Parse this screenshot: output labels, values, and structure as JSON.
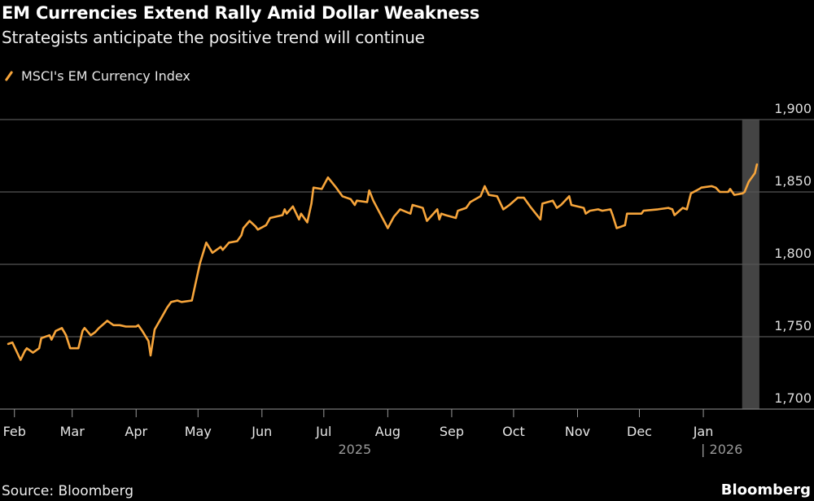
{
  "title": "EM Currencies Extend Rally Amid Dollar Weakness",
  "subtitle": "Strategists anticipate the positive trend will continue",
  "source": "Source: Bloomberg",
  "brand": "Bloomberg",
  "chart_data": {
    "type": "line",
    "xlabel": "",
    "ylabel": "",
    "xlim": [
      "2025-01-25",
      "2026-01-29"
    ],
    "ylim": [
      1700,
      1900
    ],
    "grid": true,
    "legend_position": "top-left",
    "y_ticks": [
      {
        "value": 1700,
        "label": "1,700"
      },
      {
        "value": 1750,
        "label": "1,750"
      },
      {
        "value": 1800,
        "label": "1,800"
      },
      {
        "value": 1850,
        "label": "1,850"
      },
      {
        "value": 1900,
        "label": "1,900"
      }
    ],
    "x_ticks": [
      {
        "date": "2025-02-01",
        "label": "Feb"
      },
      {
        "date": "2025-03-01",
        "label": "Mar"
      },
      {
        "date": "2025-04-01",
        "label": "Apr"
      },
      {
        "date": "2025-05-01",
        "label": "May"
      },
      {
        "date": "2025-06-01",
        "label": "Jun"
      },
      {
        "date": "2025-07-01",
        "label": "Jul"
      },
      {
        "date": "2025-08-01",
        "label": "Aug"
      },
      {
        "date": "2025-09-01",
        "label": "Sep"
      },
      {
        "date": "2025-10-01",
        "label": "Oct"
      },
      {
        "date": "2025-11-01",
        "label": "Nov"
      },
      {
        "date": "2025-12-01",
        "label": "Dec"
      },
      {
        "date": "2026-01-01",
        "label": "Jan"
      }
    ],
    "year_labels": [
      {
        "date": "2025-07-01",
        "label": "2025"
      },
      {
        "date": "2026-01-01",
        "label": "| 2026"
      }
    ],
    "highlight_range": [
      "2026-01-21",
      "2026-01-27"
    ],
    "colors": {
      "line": "#f7a53b",
      "grid": "#555555",
      "highlight": "#444444",
      "background": "#000000"
    },
    "series": [
      {
        "name": "MSCI's EM Currency Index",
        "points": [
          [
            "2025-01-29",
            1745
          ],
          [
            "2025-01-31",
            1746
          ],
          [
            "2025-02-04",
            1734
          ],
          [
            "2025-02-06",
            1740
          ],
          [
            "2025-02-07",
            1742
          ],
          [
            "2025-02-10",
            1739
          ],
          [
            "2025-02-13",
            1742
          ],
          [
            "2025-02-14",
            1749
          ],
          [
            "2025-02-18",
            1751
          ],
          [
            "2025-02-19",
            1748
          ],
          [
            "2025-02-21",
            1754
          ],
          [
            "2025-02-24",
            1756
          ],
          [
            "2025-02-26",
            1751
          ],
          [
            "2025-02-28",
            1742
          ],
          [
            "2025-03-04",
            1742
          ],
          [
            "2025-03-06",
            1754
          ],
          [
            "2025-03-07",
            1756
          ],
          [
            "2025-03-10",
            1751
          ],
          [
            "2025-03-12",
            1753
          ],
          [
            "2025-03-14",
            1756
          ],
          [
            "2025-03-18",
            1761
          ],
          [
            "2025-03-21",
            1758
          ],
          [
            "2025-03-24",
            1758
          ],
          [
            "2025-03-27",
            1757
          ],
          [
            "2025-04-01",
            1757
          ],
          [
            "2025-04-02",
            1758
          ],
          [
            "2025-04-04",
            1754
          ],
          [
            "2025-04-07",
            1747
          ],
          [
            "2025-04-08",
            1737
          ],
          [
            "2025-04-10",
            1755
          ],
          [
            "2025-04-14",
            1765
          ],
          [
            "2025-04-16",
            1770
          ],
          [
            "2025-04-18",
            1774
          ],
          [
            "2025-04-21",
            1775
          ],
          [
            "2025-04-23",
            1774
          ],
          [
            "2025-04-28",
            1775
          ],
          [
            "2025-04-30",
            1788
          ],
          [
            "2025-05-02",
            1801
          ],
          [
            "2025-05-05",
            1815
          ],
          [
            "2025-05-08",
            1808
          ],
          [
            "2025-05-12",
            1812
          ],
          [
            "2025-05-13",
            1810
          ],
          [
            "2025-05-16",
            1815
          ],
          [
            "2025-05-20",
            1816
          ],
          [
            "2025-05-22",
            1820
          ],
          [
            "2025-05-23",
            1825
          ],
          [
            "2025-05-26",
            1830
          ],
          [
            "2025-05-29",
            1826
          ],
          [
            "2025-05-30",
            1824
          ],
          [
            "2025-06-03",
            1827
          ],
          [
            "2025-06-05",
            1832
          ],
          [
            "2025-06-11",
            1834
          ],
          [
            "2025-06-12",
            1838
          ],
          [
            "2025-06-13",
            1835
          ],
          [
            "2025-06-16",
            1840
          ],
          [
            "2025-06-19",
            1831
          ],
          [
            "2025-06-20",
            1835
          ],
          [
            "2025-06-23",
            1829
          ],
          [
            "2025-06-25",
            1842
          ],
          [
            "2025-06-26",
            1853
          ],
          [
            "2025-06-30",
            1852
          ],
          [
            "2025-07-03",
            1860
          ],
          [
            "2025-07-07",
            1853
          ],
          [
            "2025-07-10",
            1847
          ],
          [
            "2025-07-14",
            1845
          ],
          [
            "2025-07-16",
            1841
          ],
          [
            "2025-07-17",
            1844
          ],
          [
            "2025-07-22",
            1843
          ],
          [
            "2025-07-23",
            1851
          ],
          [
            "2025-07-25",
            1844
          ],
          [
            "2025-08-01",
            1825
          ],
          [
            "2025-08-04",
            1833
          ],
          [
            "2025-08-07",
            1838
          ],
          [
            "2025-08-12",
            1835
          ],
          [
            "2025-08-13",
            1841
          ],
          [
            "2025-08-18",
            1839
          ],
          [
            "2025-08-20",
            1830
          ],
          [
            "2025-08-25",
            1838
          ],
          [
            "2025-08-26",
            1831
          ],
          [
            "2025-08-27",
            1835
          ],
          [
            "2025-08-29",
            1834
          ],
          [
            "2025-09-03",
            1832
          ],
          [
            "2025-09-04",
            1837
          ],
          [
            "2025-09-08",
            1839
          ],
          [
            "2025-09-10",
            1843
          ],
          [
            "2025-09-15",
            1847
          ],
          [
            "2025-09-17",
            1854
          ],
          [
            "2025-09-19",
            1848
          ],
          [
            "2025-09-23",
            1847
          ],
          [
            "2025-09-26",
            1838
          ],
          [
            "2025-09-29",
            1841
          ],
          [
            "2025-10-03",
            1846
          ],
          [
            "2025-10-06",
            1846
          ],
          [
            "2025-10-09",
            1840
          ],
          [
            "2025-10-14",
            1831
          ],
          [
            "2025-10-15",
            1842
          ],
          [
            "2025-10-20",
            1844
          ],
          [
            "2025-10-22",
            1839
          ],
          [
            "2025-10-24",
            1841
          ],
          [
            "2025-10-28",
            1847
          ],
          [
            "2025-10-29",
            1841
          ],
          [
            "2025-11-04",
            1839
          ],
          [
            "2025-11-05",
            1835
          ],
          [
            "2025-11-07",
            1837
          ],
          [
            "2025-11-11",
            1838
          ],
          [
            "2025-11-13",
            1837
          ],
          [
            "2025-11-17",
            1838
          ],
          [
            "2025-11-18",
            1834
          ],
          [
            "2025-11-20",
            1825
          ],
          [
            "2025-11-24",
            1827
          ],
          [
            "2025-11-25",
            1835
          ],
          [
            "2025-12-02",
            1835
          ],
          [
            "2025-12-03",
            1837
          ],
          [
            "2025-12-10",
            1838
          ],
          [
            "2025-12-15",
            1839
          ],
          [
            "2025-12-17",
            1838
          ],
          [
            "2025-12-18",
            1834
          ],
          [
            "2025-12-22",
            1839
          ],
          [
            "2025-12-24",
            1838
          ],
          [
            "2025-12-26",
            1849
          ],
          [
            "2025-12-30",
            1852
          ],
          [
            "2025-12-31",
            1853
          ],
          [
            "2026-01-05",
            1854
          ],
          [
            "2026-01-07",
            1853
          ],
          [
            "2026-01-09",
            1850
          ],
          [
            "2026-01-13",
            1850
          ],
          [
            "2026-01-14",
            1852
          ],
          [
            "2026-01-16",
            1848
          ],
          [
            "2026-01-20",
            1849
          ],
          [
            "2026-01-21",
            1850
          ],
          [
            "2026-01-23",
            1857
          ],
          [
            "2026-01-26",
            1863
          ],
          [
            "2026-01-27",
            1869
          ]
        ]
      }
    ]
  }
}
